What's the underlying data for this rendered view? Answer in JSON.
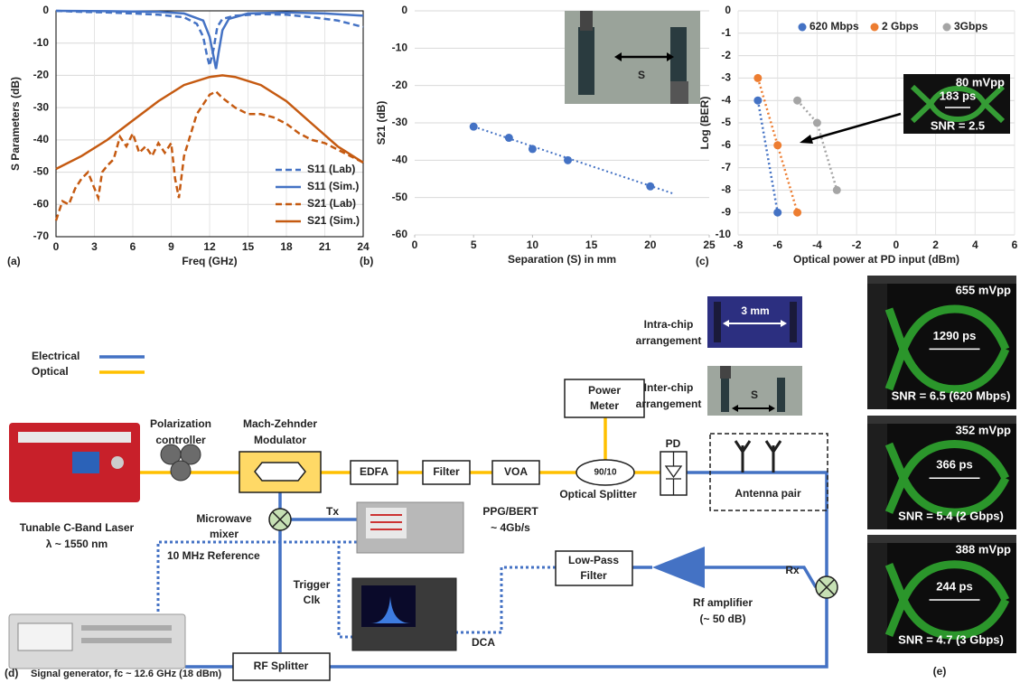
{
  "chart_data": [
    {
      "type": "line",
      "panel": "(a)",
      "x_label": "Freq (GHz)",
      "y_label": "S Parameters (dB)",
      "xlim": [
        0,
        24
      ],
      "xticks": [
        0,
        3,
        6,
        9,
        12,
        15,
        18,
        21,
        24
      ],
      "ylim": [
        -70,
        0
      ],
      "yticks": [
        0,
        -10,
        -20,
        -30,
        -40,
        -50,
        -60,
        -70
      ],
      "grid": "both",
      "legend": "lower right",
      "series": [
        {
          "name": "S11 (Lab)",
          "color": "#4472c4",
          "dash": true,
          "x": [
            0,
            2,
            4,
            6,
            8,
            10,
            11,
            11.5,
            11.8,
            12,
            12.3,
            12.6,
            13,
            14,
            16,
            18,
            20,
            22,
            24
          ],
          "values": [
            0,
            -0.3,
            -0.5,
            -0.8,
            -1.2,
            -2,
            -4,
            -8,
            -14,
            -17,
            -12,
            -5,
            -2.5,
            -1.5,
            -1,
            -1.2,
            -2,
            -3,
            -5
          ]
        },
        {
          "name": "S11 (Sim.)",
          "color": "#4472c4",
          "dash": false,
          "x": [
            0,
            4,
            8,
            10,
            11.5,
            12,
            12.3,
            12.5,
            12.7,
            13,
            13.5,
            15,
            18,
            21,
            24
          ],
          "values": [
            0,
            -0.1,
            -0.3,
            -0.8,
            -3,
            -8,
            -14,
            -18,
            -13,
            -6,
            -2.5,
            -0.8,
            -0.5,
            -0.8,
            -1.5
          ]
        },
        {
          "name": "S21 (Lab)",
          "color": "#c55a11",
          "dash": true,
          "x": [
            0,
            0.5,
            1,
            1.5,
            2,
            2.5,
            3,
            3.3,
            3.6,
            4,
            4.5,
            5,
            5.5,
            6,
            6.5,
            7,
            7.5,
            8,
            8.5,
            9,
            9.3,
            9.6,
            10,
            11,
            12,
            12.5,
            13,
            14,
            15,
            16,
            17,
            18,
            19,
            20,
            21,
            22,
            23,
            24
          ],
          "values": [
            -65,
            -59,
            -60,
            -55,
            -52,
            -50,
            -55,
            -58,
            -50,
            -48,
            -46,
            -39,
            -42,
            -38,
            -44,
            -42,
            -45,
            -41,
            -44,
            -41,
            -52,
            -58,
            -45,
            -32,
            -26,
            -25,
            -27,
            -30,
            -32,
            -32,
            -33,
            -35,
            -38,
            -40,
            -41,
            -43,
            -45,
            -47
          ]
        },
        {
          "name": "S21 (Sim.)",
          "color": "#c55a11",
          "dash": false,
          "x": [
            0,
            2,
            4,
            6,
            8,
            10,
            12,
            13,
            14,
            16,
            18,
            20,
            22,
            24
          ],
          "values": [
            -49,
            -45,
            -40,
            -34,
            -28,
            -23,
            -20.5,
            -20,
            -20.5,
            -23,
            -28,
            -35,
            -42,
            -47
          ]
        }
      ]
    },
    {
      "type": "scatter",
      "panel": "(b)",
      "x_label": "Separation (S) in mm",
      "y_label": "S21 (dB)",
      "xlim": [
        0,
        25
      ],
      "xticks": [
        0,
        5,
        10,
        15,
        20,
        25
      ],
      "ylim": [
        -60,
        0
      ],
      "yticks": [
        0,
        -10,
        -20,
        -30,
        -40,
        -50,
        -60
      ],
      "grid": "y",
      "series": [
        {
          "color": "#4472c4",
          "x": [
            5,
            8,
            10,
            13,
            20
          ],
          "values": [
            -31,
            -34,
            -37,
            -40,
            -47
          ]
        }
      ],
      "trendline": {
        "x": [
          5,
          22
        ],
        "values": [
          -31,
          -49
        ]
      },
      "inset": {
        "gap": "S"
      }
    },
    {
      "type": "scatter",
      "panel": "(c)",
      "x_label": "Optical power at PD input (dBm)",
      "y_label": "Log (BER)",
      "xlim": [
        -8,
        6
      ],
      "xticks": [
        -8,
        -6,
        -4,
        -2,
        0,
        2,
        4,
        6
      ],
      "ylim": [
        -10,
        0
      ],
      "yticks": [
        0,
        -1,
        -2,
        -3,
        -4,
        -5,
        -6,
        -7,
        -8,
        -9,
        -10
      ],
      "grid": "both",
      "legend": "top",
      "line_style": "dotted",
      "series": [
        {
          "name": "620 Mbps",
          "color": "#4472c4",
          "x": [
            -7,
            -6
          ],
          "values": [
            -4,
            -9
          ]
        },
        {
          "name": "2 Gbps",
          "color": "#ed7d31",
          "x": [
            -7,
            -6,
            -5
          ],
          "values": [
            -3,
            -6,
            -9
          ]
        },
        {
          "name": "3Gbps",
          "color": "#a5a5a5",
          "x": [
            -5,
            -4,
            -3
          ],
          "values": [
            -4,
            -5,
            -8
          ]
        }
      ],
      "inset": {
        "amplitude": "80 mVpp",
        "width": "183 ps",
        "snr": "SNR = 2.5"
      }
    }
  ],
  "diagram": {
    "panel": "(d)",
    "legend": {
      "electrical": "Electrical",
      "optical": "Optical"
    },
    "laser": [
      "Tunable C-Band Laser",
      "λ ~ 1550 nm"
    ],
    "polarization_controller": [
      "Polarization",
      "controller"
    ],
    "modulator": [
      "Mach-Zehnder",
      "Modulator"
    ],
    "edfa": "EDFA",
    "filter": "Filter",
    "voa": "VOA",
    "splitter_ratio": "90/10",
    "optical_splitter": "Optical Splitter",
    "power_meter": [
      "Power",
      "Meter"
    ],
    "pd": "PD",
    "antenna_pair": "Antenna pair",
    "intra_chip": [
      "Intra-chip",
      "arrangement"
    ],
    "intra_chip_gap": "3 mm",
    "inter_chip": [
      "Inter-chip",
      "arrangement"
    ],
    "inter_chip_gap": "S",
    "mixer": [
      "Microwave",
      "mixer"
    ],
    "tx": "Tx",
    "ppg": [
      "PPG/BERT",
      "~ 4Gb/s"
    ],
    "reference": "10 MHz Reference",
    "trigger": [
      "Trigger",
      "Clk"
    ],
    "dca": "DCA",
    "low_pass_filter": [
      "Low-Pass",
      "Filter"
    ],
    "amplifier": [
      "Rf amplifier",
      "(~ 50 dB)"
    ],
    "rx": "Rx",
    "rf_splitter": "RF Splitter",
    "signal_generator": "Signal generator, fc ~ 12.6 GHz (18 dBm)"
  },
  "eyes": {
    "panel": "(e)",
    "items": [
      {
        "amplitude": "655 mVpp",
        "width": "1290 ps",
        "snr": "SNR = 6.5 (620 Mbps)"
      },
      {
        "amplitude": "352 mVpp",
        "width": "366 ps",
        "snr": "SNR = 5.4 (2 Gbps)"
      },
      {
        "amplitude": "388 mVpp",
        "width": "244 ps",
        "snr": "SNR = 4.7 (3 Gbps)"
      }
    ]
  }
}
